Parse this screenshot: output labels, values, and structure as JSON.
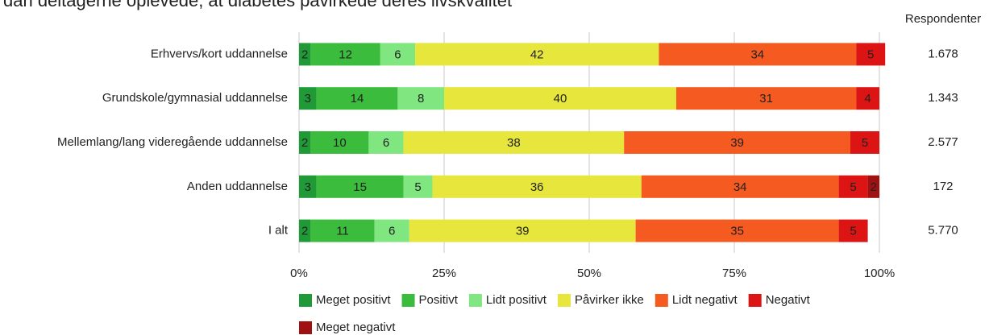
{
  "chart_data": {
    "type": "stacked_barh",
    "title": "dan deltagerne oplevede, at diabetes påvirkede deres livskvalitet",
    "categories": [
      "Erhvervs/kort  uddannelse",
      "Grundskole/gymnasial uddannelse",
      "Mellemlang/lang videregående uddannelse",
      "Anden uddannelse",
      "I alt"
    ],
    "series": [
      {
        "name": "Meget positivt",
        "color": "#1f9a36",
        "values": [
          2,
          3,
          2,
          3,
          2
        ]
      },
      {
        "name": "Positivt",
        "color": "#3cbc3c",
        "values": [
          12,
          14,
          10,
          15,
          11
        ]
      },
      {
        "name": "Lidt positivt",
        "color": "#80e680",
        "values": [
          6,
          8,
          6,
          5,
          6
        ]
      },
      {
        "name": "Påvirker ikke",
        "color": "#e6e63c",
        "values": [
          42,
          40,
          38,
          36,
          39
        ]
      },
      {
        "name": "Lidt negativt",
        "color": "#f55a20",
        "values": [
          34,
          31,
          39,
          34,
          35
        ]
      },
      {
        "name": "Negativt",
        "color": "#dd1414",
        "values": [
          5,
          4,
          5,
          5,
          5
        ]
      },
      {
        "name": "Meget negativt",
        "color": "#a01212",
        "values": [
          null,
          null,
          null,
          2,
          null
        ]
      }
    ],
    "xlim": [
      0,
      100
    ],
    "xticks": [
      {
        "value": 0,
        "label": "0%"
      },
      {
        "value": 25,
        "label": "25%"
      },
      {
        "value": 50,
        "label": "50%"
      },
      {
        "value": 75,
        "label": "75%"
      },
      {
        "value": 100,
        "label": "100%"
      }
    ],
    "grid": true,
    "legend": "bottom",
    "respondents_title": "Respondenter",
    "respondents": [
      "1.678",
      "1.343",
      "2.577",
      "172",
      "5.770"
    ]
  }
}
